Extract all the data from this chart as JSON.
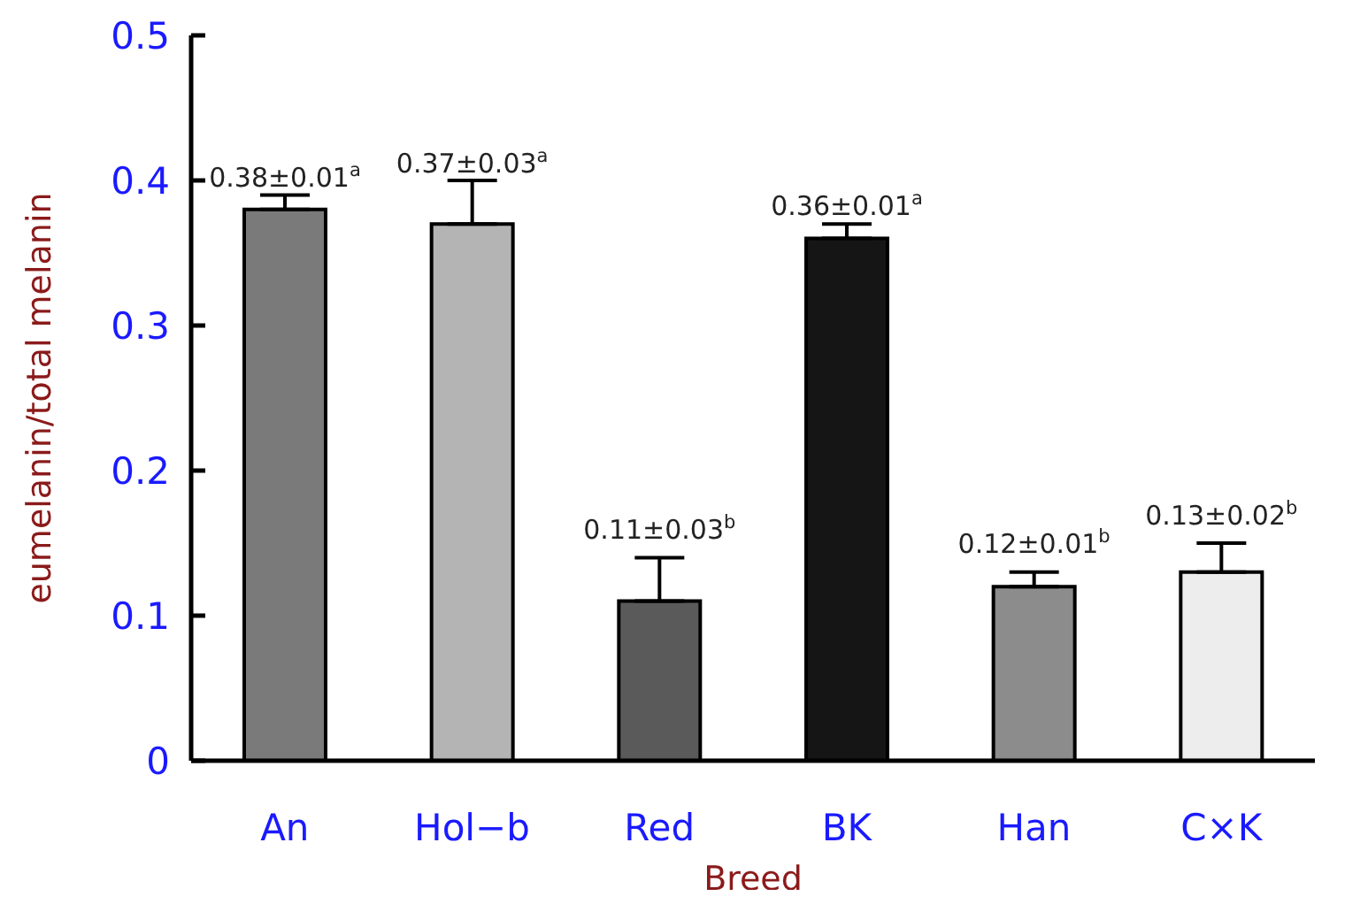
{
  "chart_data": {
    "type": "bar",
    "xlabel": "Breed",
    "ylabel": "eumelanin/total melanin",
    "categories": [
      "An",
      "Hol−b",
      "Red",
      "BK",
      "Han",
      "C×K"
    ],
    "values": [
      0.38,
      0.37,
      0.11,
      0.36,
      0.12,
      0.13
    ],
    "errors": [
      0.01,
      0.03,
      0.03,
      0.01,
      0.01,
      0.02
    ],
    "value_labels": [
      "0.38±0.01$^{a}$",
      "0.37±0.03$^{a}$",
      "0.11±0.03$^{b}$",
      "0.36±0.01$^{a}$",
      "0.12±0.01$^{b}$",
      "0.13±0.02$^{b}$"
    ],
    "colors": [
      "#7a7a7a",
      "#b4b4b4",
      "#5a5a5a",
      "#151515",
      "#8c8c8c",
      "#ededed"
    ],
    "ylim": [
      0,
      0.5
    ],
    "yticks": [
      0,
      0.1,
      0.2,
      0.3,
      0.4,
      0.5
    ],
    "grid": false,
    "legend": false
  }
}
